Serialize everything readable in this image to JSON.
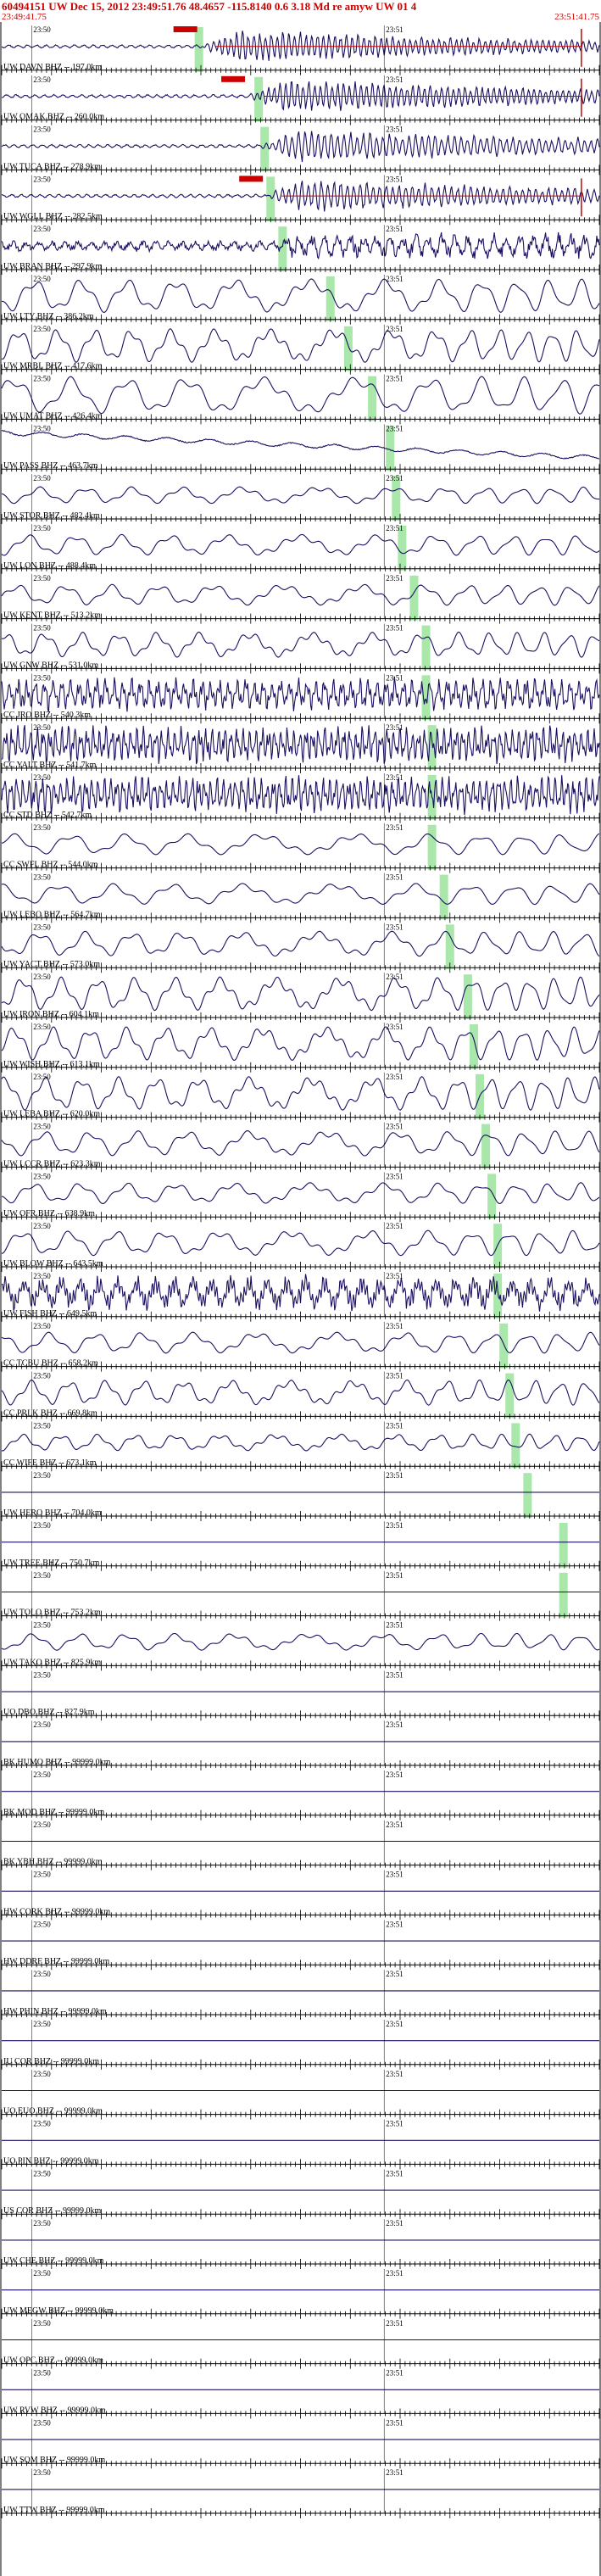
{
  "header": {
    "title": "60494151 UW Dec 15, 2012 23:49:51.76   48.4657 -115.8140  0.6 3.18 Md re amyw UW 01   4",
    "start_time": "23:49:41.75",
    "end_time": "23:51:41.75"
  },
  "chart_data": {
    "type": "line",
    "title": "60494151 UW Dec 15, 2012 23:49:51.76   48.4657 -115.8140  0.6 3.18 Md re amyw UW 01   4",
    "xlabel": "",
    "ylabel": "",
    "x_range": [
      "23:49:41.75",
      "23:51:41.75"
    ],
    "time_ticks": [
      "23:50",
      "23:51"
    ],
    "colors": {
      "trace": "#1a1060",
      "pick": "#cc0000",
      "window": "#9be39b",
      "header": "#cc0000"
    },
    "traces": [
      {
        "label": "UW DAVN BHZ -- 197.0km",
        "type": "event",
        "amp": 0.9,
        "period": 0.8,
        "pick": 0.33,
        "window": 0.33,
        "picks": true
      },
      {
        "label": "UW OMAK BHZ -- 260.0km",
        "type": "event",
        "amp": 0.9,
        "period": 0.8,
        "pick": 0.41,
        "window": 0.43,
        "picks": true
      },
      {
        "label": "UW TUCA BHZ -- 278.9km",
        "type": "event",
        "amp": 0.9,
        "period": 0.9,
        "pick": 0.43,
        "window": 0.44,
        "picks": false
      },
      {
        "label": "UW WGLL BHZ -- 282.5km",
        "type": "event",
        "amp": 0.9,
        "period": 0.9,
        "pick": 0.44,
        "window": 0.45,
        "picks": true
      },
      {
        "label": "UW BRAN BHZ -- 297.9km",
        "type": "quiet",
        "amp": 0.3,
        "period": 0.9,
        "window": 0.47
      },
      {
        "label": "UW LTY BHZ -- 386.2km",
        "type": "wave",
        "amp": 0.8,
        "period": 2.5,
        "window": 0.55
      },
      {
        "label": "UW MRBL BHZ -- 417.6km",
        "type": "wave",
        "amp": 0.8,
        "period": 2.0,
        "window": 0.58
      },
      {
        "label": "UW UMAT BHZ -- 426.4km",
        "type": "wave",
        "amp": 0.9,
        "period": 3.0,
        "window": 0.62
      },
      {
        "label": "UW PASS BHZ -- 463.7km",
        "type": "drift",
        "amp": 0.3,
        "period": 4.0,
        "window": 0.65
      },
      {
        "label": "UW STOR BHZ -- 482.4km",
        "type": "wave",
        "amp": 0.4,
        "period": 2.5,
        "window": 0.66
      },
      {
        "label": "UW LON BHZ -- 488.4km",
        "type": "wave",
        "amp": 0.5,
        "period": 2.5,
        "window": 0.67
      },
      {
        "label": "UW KENT BHZ -- 513.2km",
        "type": "wave",
        "amp": 0.5,
        "period": 2.5,
        "window": 0.69
      },
      {
        "label": "UW GNW BHZ -- 531.0km",
        "type": "wave",
        "amp": 0.6,
        "period": 2.0,
        "window": 0.71
      },
      {
        "label": "CC JRO BHZ -- 540.3km",
        "type": "noisy",
        "amp": 0.8,
        "period": 0.7,
        "window": 0.71
      },
      {
        "label": "CC YALT BHZ -- 541.7km",
        "type": "noisy",
        "amp": 0.9,
        "period": 0.5,
        "window": 0.72
      },
      {
        "label": "CC STD BHZ -- 542.7km",
        "type": "noisy",
        "amp": 0.9,
        "period": 0.5,
        "window": 0.72
      },
      {
        "label": "CC SWFL BHZ -- 544.0km",
        "type": "wave",
        "amp": 0.5,
        "period": 3.0,
        "window": 0.72
      },
      {
        "label": "UW LEBO BHZ -- 564.7km",
        "type": "wave",
        "amp": 0.5,
        "period": 3.0,
        "window": 0.74
      },
      {
        "label": "UW YACT BHZ -- 573.0km",
        "type": "wave",
        "amp": 0.6,
        "period": 2.5,
        "window": 0.75
      },
      {
        "label": "UW IRON BHZ -- 604.1km",
        "type": "wave",
        "amp": 0.8,
        "period": 2.0,
        "window": 0.78
      },
      {
        "label": "UW WISH BHZ -- 613.1km",
        "type": "wave",
        "amp": 0.8,
        "period": 2.0,
        "window": 0.79
      },
      {
        "label": "UW LEBA BHZ -- 620.0km",
        "type": "wave",
        "amp": 0.8,
        "period": 2.0,
        "window": 0.8
      },
      {
        "label": "UW LCCR BHZ -- 623.3km",
        "type": "wave",
        "amp": 0.6,
        "period": 2.5,
        "window": 0.81
      },
      {
        "label": "UW OFR BHZ -- 638.9km",
        "type": "wave",
        "amp": 0.5,
        "period": 2.5,
        "window": 0.82
      },
      {
        "label": "UW BLOW BHZ -- 643.5km",
        "type": "wave",
        "amp": 0.6,
        "period": 2.5,
        "window": 0.83
      },
      {
        "label": "UW FISH BHZ -- 649.5km",
        "type": "noisy",
        "amp": 0.8,
        "period": 1.5,
        "window": 0.83
      },
      {
        "label": "CC TCBU BHZ -- 658.2km",
        "type": "wave",
        "amp": 0.5,
        "period": 2.5,
        "window": 0.84
      },
      {
        "label": "CC PRLK BHZ -- 669.8km",
        "type": "wave",
        "amp": 0.6,
        "period": 2.0,
        "window": 0.85
      },
      {
        "label": "CC WIFE BHZ -- 673.1km",
        "type": "wave",
        "amp": 0.4,
        "period": 2.0,
        "window": 0.86
      },
      {
        "label": "UW HERO BHZ -- 704.0km",
        "type": "flat",
        "window": 0.88
      },
      {
        "label": "UW TREE BHZ -- 750.7km",
        "type": "flat",
        "window": 0.94
      },
      {
        "label": "UW TOLO BHZ -- 753.2km",
        "type": "flat",
        "window": 0.94
      },
      {
        "label": "UW TAKO BHZ -- 825.9km",
        "type": "wave",
        "amp": 0.4,
        "period": 2.5
      },
      {
        "label": "UO DBO BHZ -- 827.9km",
        "type": "flat"
      },
      {
        "label": "BK HUMO BHZ -- 99999.0km",
        "type": "flat"
      },
      {
        "label": "BK MOD BHZ -- 99999.0km",
        "type": "flat"
      },
      {
        "label": "BK YBH BHZ -- 99999.0km",
        "type": "flat"
      },
      {
        "label": "HW CORK BHZ -- 99999.0km",
        "type": "flat"
      },
      {
        "label": "HW DDRF BHZ -- 99999.0km",
        "type": "flat"
      },
      {
        "label": "HW PHIN BHZ -- 99999.0km",
        "type": "flat"
      },
      {
        "label": "IU COR BHZ -- 99999.0km",
        "type": "flat"
      },
      {
        "label": "UO EUO BHZ -- 99999.0km",
        "type": "flat"
      },
      {
        "label": "UO PIN BHZ -- 99999.0km",
        "type": "flat"
      },
      {
        "label": "US COR BHZ -- 99999.0km",
        "type": "flat"
      },
      {
        "label": "UW CHE BHZ -- 99999.0km",
        "type": "flat"
      },
      {
        "label": "UW MEGW BHZ -- 99999.0km",
        "type": "flat"
      },
      {
        "label": "UW OPC BHZ -- 99999.0km",
        "type": "flat"
      },
      {
        "label": "UW RVW BHZ -- 99999.0km",
        "type": "flat"
      },
      {
        "label": "UW SQM BHZ -- 99999.0km",
        "type": "flat"
      },
      {
        "label": "UW TTW BHZ -- 99999.0km",
        "type": "flat"
      }
    ]
  }
}
